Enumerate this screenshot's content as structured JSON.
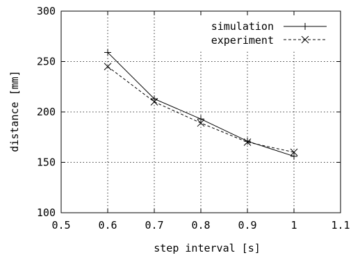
{
  "chart_data": {
    "type": "line",
    "xlabel": "step interval [s]",
    "ylabel": "distance [mm]",
    "xlim": [
      0.5,
      1.1
    ],
    "ylim": [
      100,
      300
    ],
    "xticks": [
      "0.5",
      "0.6",
      "0.7",
      "0.8",
      "0.9",
      "1",
      "1.1"
    ],
    "xtick_values": [
      0.5,
      0.6,
      0.7,
      0.8,
      0.9,
      1.0,
      1.1
    ],
    "yticks": [
      "100",
      "150",
      "200",
      "250",
      "300"
    ],
    "ytick_values": [
      100,
      150,
      200,
      250,
      300
    ],
    "grid": true,
    "legend_position": "top-right",
    "x": [
      0.6,
      0.7,
      0.8,
      0.9,
      1.0
    ],
    "series": [
      {
        "name": "simulation",
        "values": [
          259,
          213,
          193,
          171,
          156
        ],
        "marker": "plus",
        "line": "solid",
        "color": "#000000"
      },
      {
        "name": "experiment",
        "values": [
          245,
          210,
          189,
          170,
          160
        ],
        "marker": "cross",
        "line": "dashed",
        "color": "#000000"
      }
    ]
  }
}
